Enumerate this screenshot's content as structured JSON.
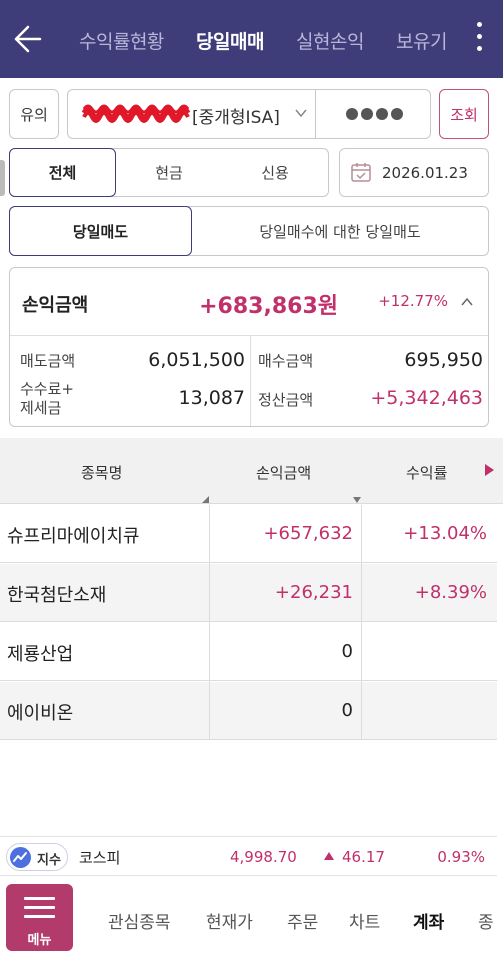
{
  "header": {
    "tabs": [
      {
        "label": "수익률현황",
        "active": false
      },
      {
        "label": "당일매매",
        "active": true
      },
      {
        "label": "실현손익",
        "active": false
      },
      {
        "label": "보유기",
        "active": false
      }
    ]
  },
  "account": {
    "caution_label": "유의",
    "type_label": "[중개형ISA]",
    "query_label": "조회"
  },
  "segment": {
    "items": [
      "전체",
      "현금",
      "신용"
    ],
    "selected": "전체"
  },
  "date": "2026.01.23",
  "sub_tabs": {
    "items": [
      "당일매도",
      "당일매수에 대한 당일매도"
    ],
    "selected": "당일매도"
  },
  "summary": {
    "pl_label": "손익금액",
    "pl_amount": "+683,863원",
    "pl_pct": "+12.77%",
    "sell_label": "매도금액",
    "sell_value": "6,051,500",
    "buy_label": "매수금액",
    "buy_value": "695,950",
    "fee_label": "수수료+",
    "fee_label2": "제세금",
    "fee_value": "13,087",
    "settle_label": "정산금액",
    "settle_value": "+5,342,463"
  },
  "table": {
    "headers": [
      "종목명",
      "손익금액",
      "수익률"
    ],
    "rows": [
      {
        "name": "슈프리마에이치큐",
        "pl": "+657,632",
        "rate": "+13.04%"
      },
      {
        "name": "한국첨단소재",
        "pl": "+26,231",
        "rate": "+8.39%"
      },
      {
        "name": "제룡산업",
        "pl": "0",
        "rate": ""
      },
      {
        "name": "에이비온",
        "pl": "0",
        "rate": ""
      }
    ]
  },
  "ticker": {
    "badge": "지수",
    "name": "코스피",
    "value": "4,998.70",
    "change": "46.17",
    "pct": "0.93%"
  },
  "bottom_nav": {
    "menu_label": "메뉴",
    "items": [
      "관심종목",
      "현재가",
      "주문",
      "차트",
      "계좌",
      "종"
    ],
    "active": "계좌"
  },
  "colors": {
    "header_bg": "#3f3d79",
    "accent_pink": "#c0306a",
    "menu_bg": "#b33b6c",
    "account_mask": "#e0192a"
  }
}
